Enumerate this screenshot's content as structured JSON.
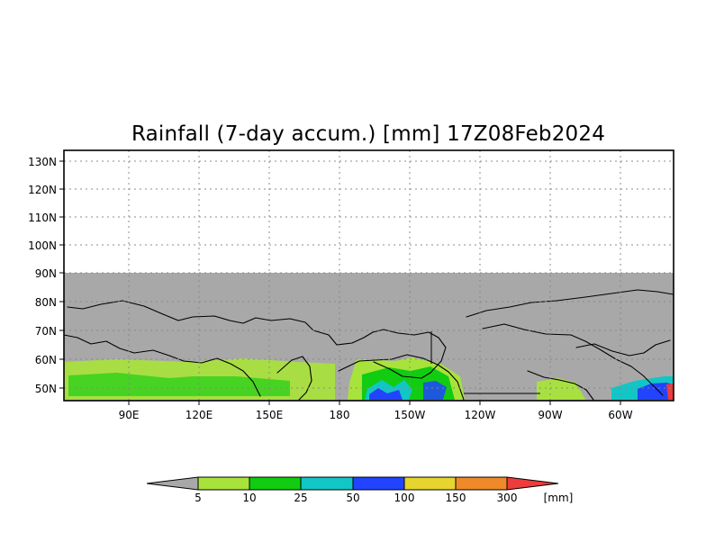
{
  "title": "Rainfall (7-day accum.) [mm] 17Z08Feb2024",
  "latitude_labels": [
    "130N",
    "120N",
    "110N",
    "100N",
    "90N",
    "80N",
    "70N",
    "60N",
    "50N"
  ],
  "longitude_labels": [
    "90E",
    "120E",
    "150E",
    "180",
    "150W",
    "120W",
    "90W",
    "60W"
  ],
  "legend": {
    "unit": "[mm]",
    "thresholds": [
      "5",
      "10",
      "25",
      "50",
      "100",
      "150",
      "300"
    ],
    "bins": [
      {
        "color": "#a8a8a8"
      },
      {
        "color": "#a8e33b"
      },
      {
        "color": "#11cc11"
      },
      {
        "color": "#12c6c6"
      },
      {
        "color": "#2244ff"
      },
      {
        "color": "#e6d52e"
      },
      {
        "color": "#ee8a2a"
      },
      {
        "color": "#ee3b3b"
      }
    ]
  },
  "colors": {
    "land_mask": "#a8a8a8",
    "coastline": "#000000",
    "grid": "#888888"
  }
}
